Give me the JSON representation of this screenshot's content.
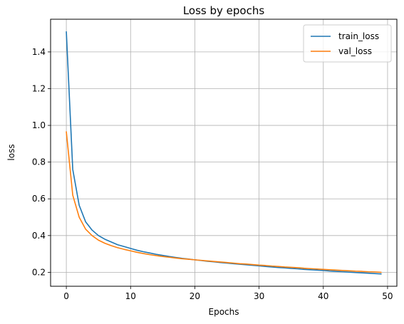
{
  "chart_data": {
    "type": "line",
    "title": "Loss by epochs",
    "xlabel": "Epochs",
    "ylabel": "loss",
    "xlim": [
      -2.45,
      51.45
    ],
    "ylim": [
      0.124,
      1.578
    ],
    "xticks": [
      0,
      10,
      20,
      30,
      40,
      50
    ],
    "yticks": [
      0.2,
      0.4,
      0.6,
      0.8,
      1.0,
      1.2,
      1.4
    ],
    "ytick_labels": [
      "0.2",
      "0.4",
      "0.6",
      "0.8",
      "1.0",
      "1.2",
      "1.4"
    ],
    "grid": true,
    "legend_position": "top-right",
    "x": [
      0,
      1,
      2,
      3,
      4,
      5,
      6,
      7,
      8,
      9,
      10,
      11,
      12,
      13,
      14,
      15,
      16,
      17,
      18,
      19,
      20,
      21,
      22,
      23,
      24,
      25,
      26,
      27,
      28,
      29,
      30,
      31,
      32,
      33,
      34,
      35,
      36,
      37,
      38,
      39,
      40,
      41,
      42,
      43,
      44,
      45,
      46,
      47,
      48,
      49
    ],
    "series": [
      {
        "name": "train_loss",
        "color": "#1f77b4",
        "values": [
          1.51,
          0.76,
          0.565,
          0.475,
          0.43,
          0.4,
          0.38,
          0.365,
          0.35,
          0.34,
          0.33,
          0.32,
          0.312,
          0.305,
          0.298,
          0.292,
          0.286,
          0.281,
          0.276,
          0.272,
          0.268,
          0.264,
          0.26,
          0.257,
          0.253,
          0.25,
          0.247,
          0.244,
          0.241,
          0.238,
          0.235,
          0.232,
          0.229,
          0.226,
          0.224,
          0.221,
          0.219,
          0.216,
          0.214,
          0.212,
          0.21,
          0.207,
          0.205,
          0.203,
          0.201,
          0.199,
          0.197,
          0.195,
          0.193,
          0.191
        ]
      },
      {
        "name": "val_loss",
        "color": "#ff7f0e",
        "values": [
          0.965,
          0.62,
          0.5,
          0.435,
          0.4,
          0.375,
          0.358,
          0.345,
          0.334,
          0.325,
          0.317,
          0.309,
          0.302,
          0.296,
          0.291,
          0.286,
          0.282,
          0.278,
          0.274,
          0.271,
          0.268,
          0.265,
          0.262,
          0.259,
          0.256,
          0.253,
          0.25,
          0.247,
          0.245,
          0.242,
          0.239,
          0.237,
          0.234,
          0.232,
          0.229,
          0.227,
          0.225,
          0.222,
          0.22,
          0.218,
          0.216,
          0.214,
          0.212,
          0.21,
          0.208,
          0.206,
          0.205,
          0.203,
          0.202,
          0.2
        ]
      }
    ]
  }
}
